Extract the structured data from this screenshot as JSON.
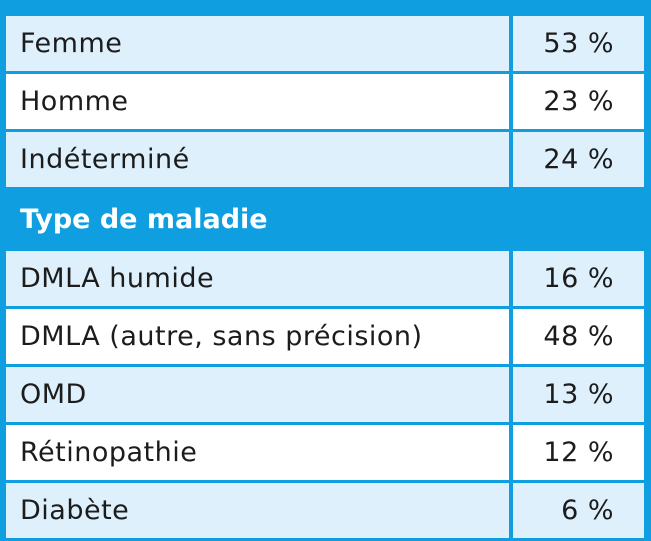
{
  "rows_sexe": [
    {
      "label": "Femme",
      "value": "53 %"
    },
    {
      "label": "Homme",
      "value": "23 %"
    },
    {
      "label": "Indéterminé",
      "value": "24 %"
    }
  ],
  "section_maladie": {
    "title": "Type de maladie",
    "rows": [
      {
        "label": "DMLA humide",
        "value": "16 %"
      },
      {
        "label": "DMLA (autre, sans précision)",
        "value": "48 %"
      },
      {
        "label": "OMD",
        "value": "13 %"
      },
      {
        "label": "Rétinopathie",
        "value": "12 %"
      },
      {
        "label": "Diabète",
        "value": "6 %"
      }
    ]
  }
}
